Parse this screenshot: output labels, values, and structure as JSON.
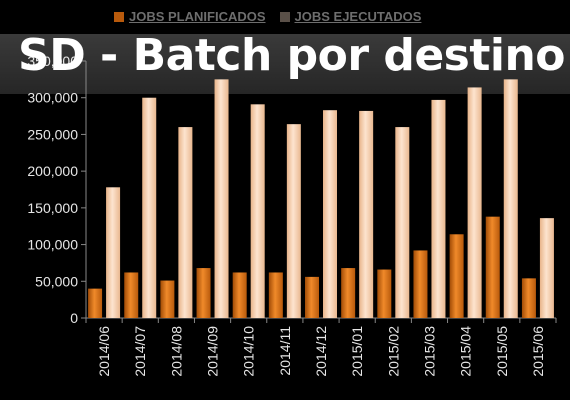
{
  "title": "SD - Batch por destino",
  "legend": {
    "planned_label": "JOBS PLANIFICADOS",
    "executed_label": "JOBS EJECUTADOS"
  },
  "colors": {
    "planned": "#e0700f",
    "executed": "#f7cba4",
    "background": "#000000",
    "axis_text": "#e6e6e6"
  },
  "chart_data": {
    "type": "bar",
    "title": "SD - Batch por destino",
    "categories": [
      "2014/06",
      "2014/07",
      "2014/08",
      "2014/09",
      "2014/10",
      "2014/11",
      "2014/12",
      "2015/01",
      "2015/02",
      "2015/03",
      "2015/04",
      "2015/05",
      "2015/06"
    ],
    "series": [
      {
        "name": "JOBS PLANIFICADOS",
        "values": [
          40000,
          62000,
          51000,
          68000,
          62000,
          62000,
          56000,
          68000,
          66000,
          92000,
          114000,
          138000,
          54000
        ]
      },
      {
        "name": "JOBS EJECUTADOS",
        "values": [
          178000,
          300000,
          260000,
          325000,
          291000,
          264000,
          283000,
          282000,
          260000,
          297000,
          314000,
          325000,
          136000
        ]
      }
    ],
    "yticks": [
      "0",
      "50,000",
      "100,000",
      "150,000",
      "200,000",
      "250,000",
      "300,000",
      "350,000"
    ],
    "ylim": [
      0,
      350000
    ],
    "legend_position": "top",
    "grid": false
  }
}
